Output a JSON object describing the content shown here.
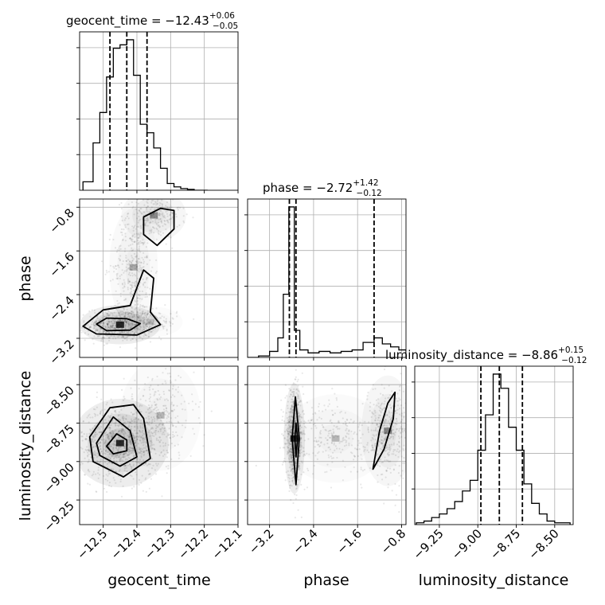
{
  "chart_data": [
    {
      "type": "histogram",
      "panel": "diag-1",
      "title": {
        "param": "geocent_time",
        "median": "−12.43",
        "plus": "+0.06",
        "minus": "−0.05"
      },
      "quantile_lines": [
        -12.48,
        -12.43,
        -12.37
      ],
      "edges": [
        -12.56,
        -12.53,
        -12.51,
        -12.49,
        -12.47,
        -12.45,
        -12.43,
        -12.41,
        -12.39,
        -12.37,
        -12.35,
        -12.33,
        -12.31,
        -12.29,
        -12.27,
        -12.25,
        -12.23,
        -12.21,
        -12.19
      ],
      "heights": [
        0.05,
        0.28,
        0.46,
        0.67,
        0.84,
        0.86,
        0.89,
        0.68,
        0.39,
        0.34,
        0.25,
        0.13,
        0.04,
        0.02,
        0.01,
        0.005,
        0.0,
        0.0
      ]
    },
    {
      "type": "histogram",
      "panel": "diag-2",
      "title": {
        "param": "phase",
        "median": "−2.72",
        "plus": "+1.42",
        "minus": "−0.12"
      },
      "quantile_lines": [
        -2.84,
        -2.72,
        -1.3
      ],
      "edges": [
        -3.6,
        -3.4,
        -3.2,
        -3.05,
        -2.95,
        -2.85,
        -2.75,
        -2.65,
        -2.5,
        -2.3,
        -2.1,
        -1.9,
        -1.7,
        -1.5,
        -1.3,
        -1.15,
        -1.0,
        -0.85,
        -0.72
      ],
      "heights": [
        0.0,
        0.01,
        0.04,
        0.13,
        0.42,
        1.0,
        0.18,
        0.05,
        0.03,
        0.04,
        0.03,
        0.04,
        0.05,
        0.1,
        0.13,
        0.09,
        0.07,
        0.05
      ]
    },
    {
      "type": "histogram",
      "panel": "diag-3",
      "title": {
        "param": "luminosity_distance",
        "median": "−8.86",
        "plus": "+0.15",
        "minus": "−0.12"
      },
      "quantile_lines": [
        -8.98,
        -8.86,
        -8.71
      ],
      "edges": [
        -9.4,
        -9.35,
        -9.3,
        -9.25,
        -9.2,
        -9.15,
        -9.1,
        -9.05,
        -9.0,
        -8.95,
        -8.9,
        -8.85,
        -8.8,
        -8.75,
        -8.7,
        -8.65,
        -8.6,
        -8.55,
        -8.5,
        -8.4
      ],
      "heights": [
        0.01,
        0.02,
        0.04,
        0.06,
        0.09,
        0.13,
        0.19,
        0.25,
        0.42,
        0.62,
        0.85,
        0.77,
        0.55,
        0.42,
        0.23,
        0.12,
        0.06,
        0.02,
        0.01
      ]
    },
    {
      "type": "scatter",
      "panel": "geocent_time-vs-phase",
      "x_param": "geocent_time",
      "y_param": "phase",
      "clusters": [
        {
          "x": -12.45,
          "y": -2.95,
          "sx": 0.05,
          "sy": 0.15,
          "n": 620,
          "w": 1.0
        },
        {
          "x": -12.35,
          "y": -0.95,
          "sx": 0.04,
          "sy": 0.2,
          "n": 260,
          "w": 0.5
        },
        {
          "x": -12.41,
          "y": -1.9,
          "sx": 0.03,
          "sy": 0.45,
          "n": 330,
          "w": 0.35
        },
        {
          "x": -12.36,
          "y": -2.9,
          "sx": 0.04,
          "sy": 0.12,
          "n": 120,
          "w": 0.2
        }
      ],
      "contours": [
        [
          [
            -12.52,
            -2.94
          ],
          [
            -12.49,
            -2.83
          ],
          [
            -12.43,
            -2.84
          ],
          [
            -12.39,
            -2.93
          ],
          [
            -12.42,
            -3.05
          ],
          [
            -12.49,
            -3.06
          ]
        ],
        [
          [
            -12.56,
            -2.98
          ],
          [
            -12.5,
            -2.68
          ],
          [
            -12.42,
            -2.6
          ],
          [
            -12.38,
            -1.95
          ],
          [
            -12.35,
            -2.1
          ],
          [
            -12.36,
            -2.72
          ],
          [
            -12.33,
            -2.95
          ],
          [
            -12.4,
            -3.14
          ],
          [
            -12.52,
            -3.12
          ]
        ],
        [
          [
            -12.38,
            -0.98
          ],
          [
            -12.33,
            -0.82
          ],
          [
            -12.29,
            -0.86
          ],
          [
            -12.29,
            -1.2
          ],
          [
            -12.34,
            -1.5
          ],
          [
            -12.38,
            -1.3
          ]
        ]
      ],
      "xlim": [
        -12.57,
        -12.1
      ],
      "ylim": [
        -3.55,
        -0.65
      ]
    },
    {
      "type": "scatter",
      "panel": "geocent_time-vs-luminosity_distance",
      "x_param": "geocent_time",
      "y_param": "luminosity_distance",
      "clusters": [
        {
          "x": -12.45,
          "y": -8.88,
          "sx": 0.06,
          "sy": 0.12,
          "n": 900,
          "w": 1.0
        },
        {
          "x": -12.33,
          "y": -8.7,
          "sx": 0.05,
          "sy": 0.15,
          "n": 260,
          "w": 0.3
        }
      ],
      "contours": [
        [
          [
            -12.49,
            -8.9
          ],
          [
            -12.46,
            -8.82
          ],
          [
            -12.43,
            -8.86
          ],
          [
            -12.43,
            -8.93
          ],
          [
            -12.47,
            -8.95
          ]
        ],
        [
          [
            -12.52,
            -8.88
          ],
          [
            -12.47,
            -8.71
          ],
          [
            -12.42,
            -8.8
          ],
          [
            -12.4,
            -8.97
          ],
          [
            -12.45,
            -9.03
          ],
          [
            -12.51,
            -8.96
          ]
        ],
        [
          [
            -12.54,
            -8.84
          ],
          [
            -12.48,
            -8.65
          ],
          [
            -12.41,
            -8.63
          ],
          [
            -12.38,
            -8.72
          ],
          [
            -12.36,
            -8.98
          ],
          [
            -12.44,
            -9.1
          ],
          [
            -12.53,
            -9.0
          ]
        ]
      ],
      "xlim": [
        -12.57,
        -12.1
      ],
      "ylim": [
        -9.41,
        -8.38
      ]
    },
    {
      "type": "scatter",
      "panel": "phase-vs-luminosity_distance",
      "x_param": "phase",
      "y_param": "luminosity_distance",
      "clusters": [
        {
          "x": -2.75,
          "y": -8.85,
          "sx": 0.08,
          "sy": 0.15,
          "n": 650,
          "w": 1.0
        },
        {
          "x": -1.05,
          "y": -8.8,
          "sx": 0.2,
          "sy": 0.15,
          "n": 380,
          "w": 0.5
        },
        {
          "x": -2.0,
          "y": -8.85,
          "sx": 0.4,
          "sy": 0.12,
          "n": 260,
          "w": 0.3
        }
      ],
      "contours": [
        [
          [
            -2.74,
            -8.85
          ],
          [
            -2.72,
            -8.75
          ],
          [
            -2.69,
            -8.85
          ],
          [
            -2.72,
            -8.97
          ]
        ],
        [
          [
            -2.79,
            -8.85
          ],
          [
            -2.73,
            -8.58
          ],
          [
            -2.66,
            -8.85
          ],
          [
            -2.72,
            -9.15
          ]
        ],
        [
          [
            -1.32,
            -9.05
          ],
          [
            -1.12,
            -8.92
          ],
          [
            -0.95,
            -8.72
          ],
          [
            -0.92,
            -8.55
          ],
          [
            -1.05,
            -8.62
          ],
          [
            -1.2,
            -8.8
          ]
        ]
      ],
      "xlim": [
        -3.6,
        -0.72
      ],
      "ylim": [
        -9.41,
        -8.38
      ]
    }
  ],
  "axes": {
    "geocent_time": {
      "label": "geocent_time",
      "ticks": [
        -12.5,
        -12.4,
        -12.3,
        -12.2,
        -12.1
      ],
      "tick_labels": [
        "−12.5",
        "−12.4",
        "−12.3",
        "−12.2",
        "−12.1"
      ]
    },
    "phase": {
      "label": "phase",
      "ticks": [
        -3.2,
        -2.4,
        -1.6,
        -0.8
      ],
      "tick_labels": [
        "−3.2",
        "−2.4",
        "−1.6",
        "−0.8"
      ]
    },
    "luminosity_distance": {
      "label": "luminosity_distance",
      "ticks": [
        -9.25,
        -9.0,
        -8.75,
        -8.5
      ],
      "tick_labels": [
        "−9.25",
        "−9.00",
        "−8.75",
        "−8.50"
      ]
    }
  }
}
